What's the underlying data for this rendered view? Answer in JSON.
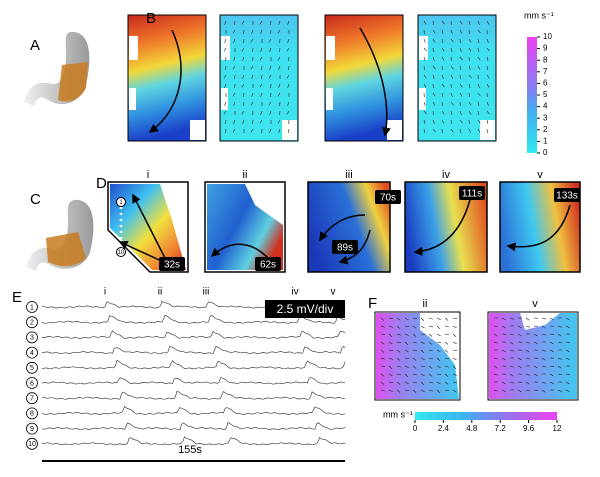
{
  "panel_labels": [
    "A",
    "B",
    "C",
    "D",
    "E",
    "F"
  ],
  "panel_b": {
    "colorbar": {
      "unit": "mm s⁻¹",
      "ticks": [
        0,
        1,
        2,
        3,
        4,
        5,
        6,
        7,
        8,
        9,
        10
      ]
    }
  },
  "panel_d": {
    "maps": [
      {
        "label": "i",
        "times": [
          "32s"
        ],
        "electrodes": [
          "1",
          "10"
        ]
      },
      {
        "label": "ii",
        "times": [
          "62s"
        ]
      },
      {
        "label": "iii",
        "times": [
          "70s",
          "89s"
        ]
      },
      {
        "label": "iv",
        "times": [
          "111s"
        ]
      },
      {
        "label": "v",
        "times": [
          "133s"
        ]
      }
    ]
  },
  "panel_e": {
    "markers": [
      "i",
      "ii",
      "iii",
      "iv",
      "v"
    ],
    "channels": [
      "1",
      "2",
      "3",
      "4",
      "5",
      "6",
      "7",
      "8",
      "9",
      "10"
    ],
    "scale": "2.5 mV/div",
    "duration": "155s"
  },
  "panel_f": {
    "maps": [
      "ii",
      "v"
    ],
    "colorbar": {
      "unit": "mm s⁻¹",
      "ticks": [
        0,
        2.4,
        4.8,
        7.2,
        9.6,
        12
      ]
    }
  }
}
